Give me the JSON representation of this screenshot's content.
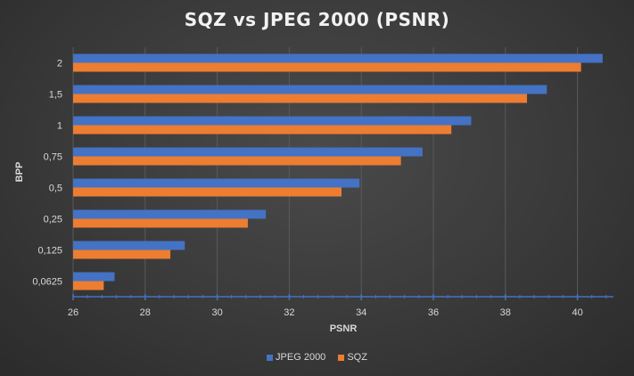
{
  "chart_data": {
    "type": "bar",
    "orientation": "horizontal",
    "title": "SQZ vs JPEG 2000 (PSNR)",
    "xlabel": "PSNR",
    "ylabel": "BPP",
    "categories": [
      "2",
      "1,5",
      "1",
      "0,75",
      "0,5",
      "0,25",
      "0,125",
      "0,0625"
    ],
    "series": [
      {
        "name": "JPEG 2000",
        "color": "#4472c4",
        "values": [
          40.7,
          39.15,
          37.05,
          35.7,
          33.95,
          31.35,
          29.1,
          27.15
        ]
      },
      {
        "name": "SQZ",
        "color": "#ed7d31",
        "values": [
          40.1,
          38.6,
          36.5,
          35.1,
          33.45,
          30.85,
          28.7,
          26.85
        ]
      }
    ],
    "xlim": [
      26,
      41
    ],
    "xticks": [
      26,
      28,
      30,
      32,
      34,
      36,
      38,
      40
    ],
    "grid": true,
    "legend_position": "bottom"
  }
}
